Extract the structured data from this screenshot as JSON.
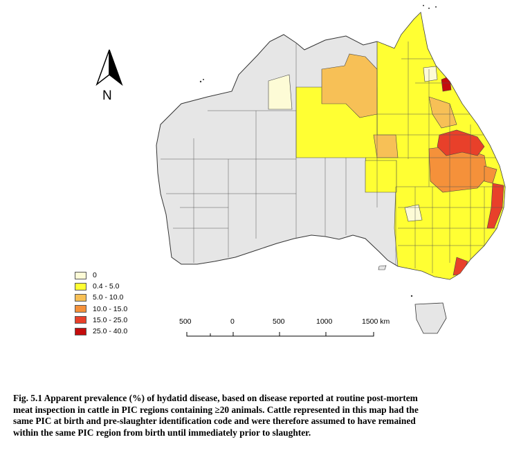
{
  "legend": {
    "items": [
      {
        "label": "0",
        "color": "#fdfbd6"
      },
      {
        "label": "0.4 - 5.0",
        "color": "#ffff33"
      },
      {
        "label": "5.0 - 10.0",
        "color": "#f7c056"
      },
      {
        "label": "10.0 - 15.0",
        "color": "#f5913a"
      },
      {
        "label": "15.0 - 25.0",
        "color": "#e8402a"
      },
      {
        "label": "25.0 - 40.0",
        "color": "#c40d0d"
      }
    ]
  },
  "no_data_color": "#e6e6e6",
  "scale_bar": {
    "labels": [
      "500",
      "0",
      "500",
      "1000",
      "1500 km"
    ]
  },
  "north_arrow": {
    "label": "N"
  },
  "caption": {
    "lines": [
      "Fig. 5.1 Apparent prevalence (%) of hydatid disease, based on disease reported at routine post-mortem",
      "meat inspection in cattle in PIC regions containing ≥20 animals. Cattle represented in this map had the",
      "same PIC at birth and pre-slaughter identification code and were therefore assumed to have remained",
      "within the same PIC region from birth until immediately prior to slaughter."
    ]
  }
}
